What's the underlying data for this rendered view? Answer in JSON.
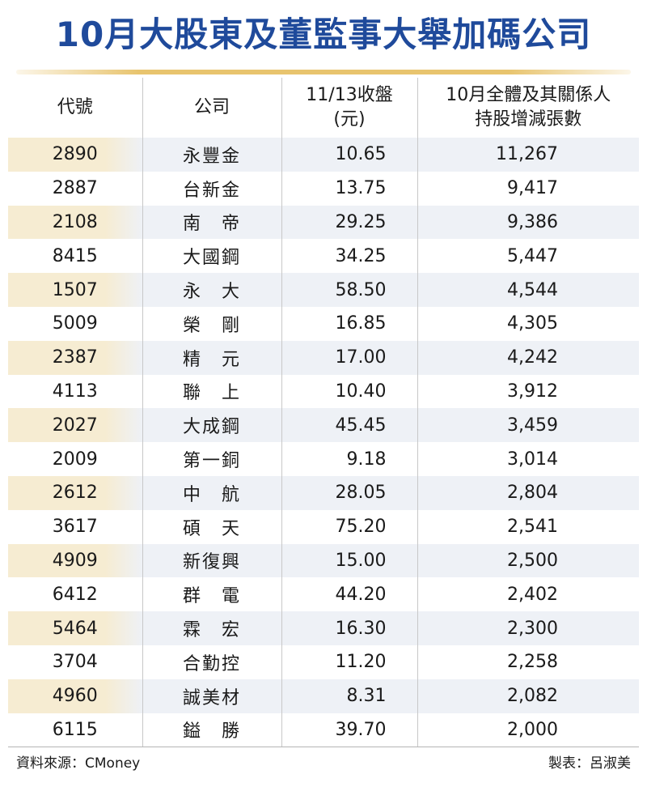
{
  "title": "10月大股東及董監事大舉加碼公司",
  "headers": {
    "code": "代號",
    "company": "公司",
    "close_line1": "11/13收盤",
    "close_line2": "(元)",
    "change_line1": "10月全體及其關係人",
    "change_line2": "持股增減張數"
  },
  "rows": [
    {
      "code": "2890",
      "name": "永豐金",
      "close": "10.65",
      "change": "11,267"
    },
    {
      "code": "2887",
      "name": "台新金",
      "close": "13.75",
      "change": "9,417"
    },
    {
      "code": "2108",
      "name": "南　帝",
      "close": "29.25",
      "change": "9,386"
    },
    {
      "code": "8415",
      "name": "大國鋼",
      "close": "34.25",
      "change": "5,447"
    },
    {
      "code": "1507",
      "name": "永　大",
      "close": "58.50",
      "change": "4,544"
    },
    {
      "code": "5009",
      "name": "榮　剛",
      "close": "16.85",
      "change": "4,305"
    },
    {
      "code": "2387",
      "name": "精　元",
      "close": "17.00",
      "change": "4,242"
    },
    {
      "code": "4113",
      "name": "聯　上",
      "close": "10.40",
      "change": "3,912"
    },
    {
      "code": "2027",
      "name": "大成鋼",
      "close": "45.45",
      "change": "3,459"
    },
    {
      "code": "2009",
      "name": "第一銅",
      "close": "9.18",
      "change": "3,014"
    },
    {
      "code": "2612",
      "name": "中　航",
      "close": "28.05",
      "change": "2,804"
    },
    {
      "code": "3617",
      "name": "碩　天",
      "close": "75.20",
      "change": "2,541"
    },
    {
      "code": "4909",
      "name": "新復興",
      "close": "15.00",
      "change": "2,500"
    },
    {
      "code": "6412",
      "name": "群　電",
      "close": "44.20",
      "change": "2,402"
    },
    {
      "code": "5464",
      "name": "霖　宏",
      "close": "16.30",
      "change": "2,300"
    },
    {
      "code": "3704",
      "name": "合勤控",
      "close": "11.20",
      "change": "2,258"
    },
    {
      "code": "4960",
      "name": "誠美材",
      "close": "8.31",
      "change": "2,082"
    },
    {
      "code": "6115",
      "name": "鎰　勝",
      "close": "39.70",
      "change": "2,000"
    }
  ],
  "footer": {
    "source": "資料來源：CMoney",
    "maker": "製表：呂淑美"
  },
  "colors": {
    "title": "#1f4a9b",
    "rule": "#e8c46e",
    "stripe": "#eef1f6",
    "stripe_accent": "#f6ecd2"
  }
}
